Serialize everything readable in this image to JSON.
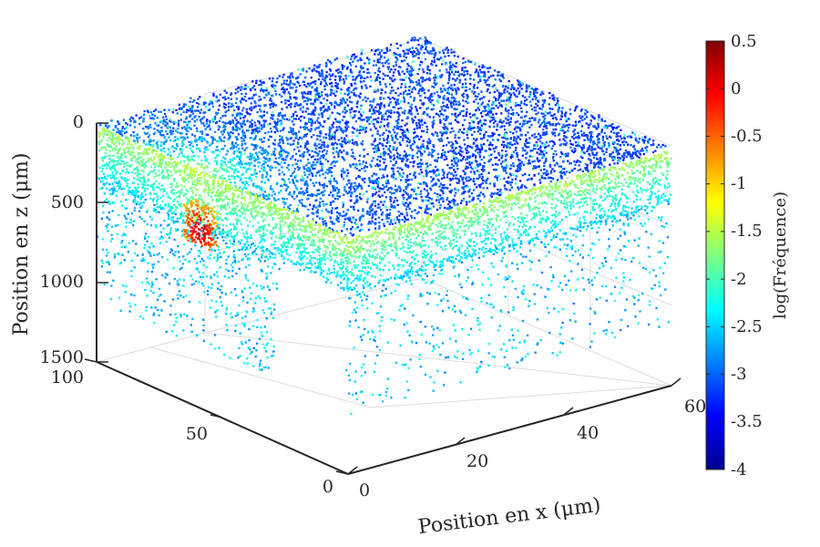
{
  "chart_data": {
    "type": "scatter",
    "subtype": "3d-scatter",
    "title": "",
    "xlabel": "Position en x (μm)",
    "ylabel": "",
    "zlabel": "Position en z (μm)",
    "x_range": [
      0,
      60
    ],
    "y_range": [
      0,
      100
    ],
    "z_range": [
      0,
      1500
    ],
    "z_reversed": true,
    "x_ticks": [
      "0",
      "20",
      "40",
      "60"
    ],
    "y_ticks": [
      "0",
      "50",
      "100"
    ],
    "z_ticks": [
      "0",
      "500",
      "1000",
      "1500"
    ],
    "grid": true,
    "colormap": "jet",
    "color_range": [
      -4,
      0.5
    ],
    "colorbar_label": "log(Fréquence)",
    "colorbar_ticks": [
      "0.5",
      "0",
      "-0.5",
      "-1",
      "-1.5",
      "-2",
      "-2.5",
      "-3",
      "-3.5",
      "-4"
    ],
    "hotspot": {
      "x": 0,
      "y": 60,
      "z": 400,
      "value": 0.5
    }
  }
}
